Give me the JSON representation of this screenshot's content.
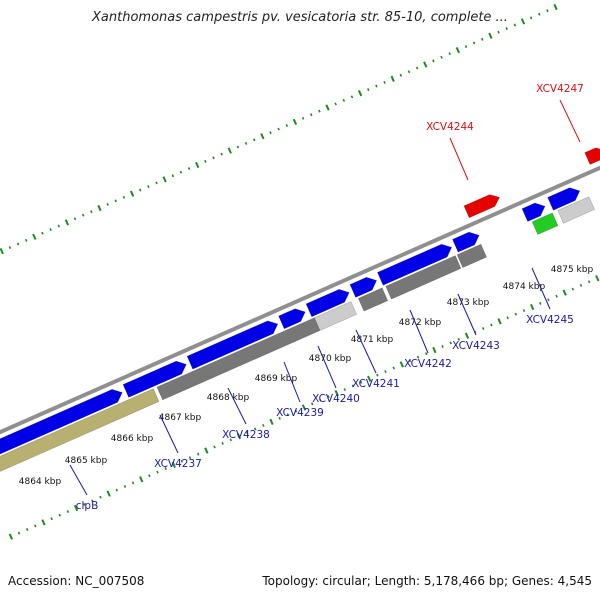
{
  "title": "Xanthomonas campestris pv. vesicatoria str. 85-10, complete ...",
  "footer": {
    "accession": "Accession: NC_007508",
    "info": "Topology: circular; Length: 5,178,466 bp; Genes: 4,545"
  },
  "colors": {
    "cds": "#0000e6",
    "rna": "#e60000",
    "misc": "#22cc22",
    "pseudo_grey": "#777777",
    "pseudo_light": "#cccccc",
    "highlight_gene": "#b8b070",
    "backbone": "#8f8f8f",
    "ticks": "#1f8a1f",
    "label_cds": "#1a1aa8",
    "label_rna": "#dd1111"
  },
  "ticks": [
    {
      "label": "4864 kbp"
    },
    {
      "label": "4865 kbp"
    },
    {
      "label": "4866 kbp"
    },
    {
      "label": "4867 kbp"
    },
    {
      "label": "4868 kbp"
    },
    {
      "label": "4869 kbp"
    },
    {
      "label": "4870 kbp"
    },
    {
      "label": "4871 kbp"
    },
    {
      "label": "4872 kbp"
    },
    {
      "label": "4873 kbp"
    },
    {
      "label": "4874 kbp"
    },
    {
      "label": "4875 kbp"
    }
  ],
  "genes": [
    {
      "name": "clpB",
      "type": "cds"
    },
    {
      "name": "XCV4237",
      "type": "cds"
    },
    {
      "name": "XCV4238",
      "type": "cds"
    },
    {
      "name": "XCV4239",
      "type": "cds"
    },
    {
      "name": "XCV4240",
      "type": "cds"
    },
    {
      "name": "XCV4241",
      "type": "cds"
    },
    {
      "name": "XCV4242",
      "type": "cds"
    },
    {
      "name": "XCV4243",
      "type": "cds"
    },
    {
      "name": "XCV4245",
      "type": "cds"
    },
    {
      "name": "XCV4244",
      "type": "rna"
    },
    {
      "name": "XCV4247",
      "type": "rna"
    }
  ]
}
